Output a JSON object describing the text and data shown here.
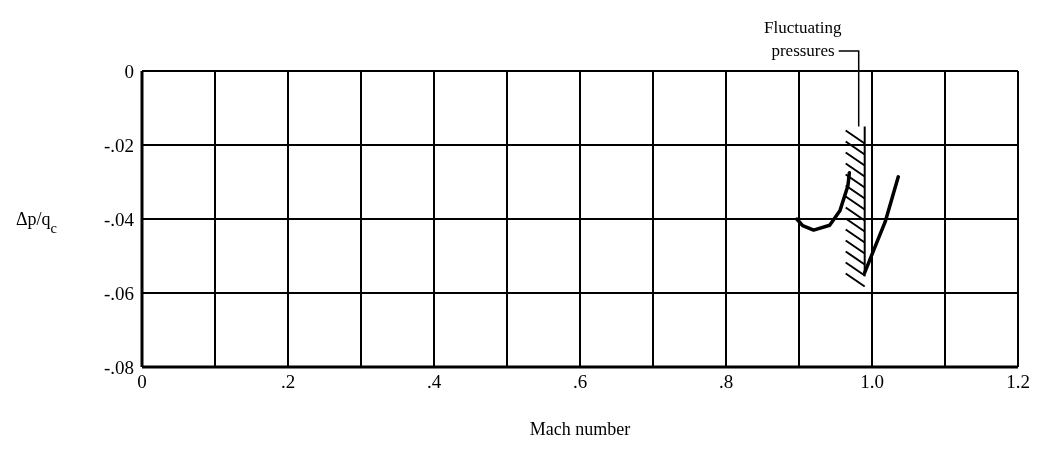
{
  "chart_data": {
    "type": "line",
    "xlabel": "Mach number",
    "ylabel": "Δp/q$_{c}$",
    "series": [
      {
        "color": "#000000",
        "x": [
          0.897,
          0.905,
          0.92,
          0.942,
          0.956,
          0.967,
          0.969
        ],
        "values": [
          -0.04,
          -0.0418,
          -0.043,
          -0.0417,
          -0.0378,
          -0.031,
          -0.0275
        ]
      },
      {
        "color": "#000000",
        "x": [
          0.99,
          1.004,
          1.018,
          1.036
        ],
        "values": [
          -0.0545,
          -0.0476,
          -0.0408,
          -0.0286
        ]
      }
    ],
    "annotations": [
      "Fluctuating pressures"
    ],
    "xlim": [
      0,
      1.2
    ],
    "xticks": [
      0,
      {
        "value": 0.1,
        "label": null
      },
      {
        "value": 0.2,
        "label": ".2"
      },
      {
        "value": 0.3,
        "label": null
      },
      {
        "value": 0.4,
        "label": ".4"
      },
      {
        "value": 0.5,
        "label": null
      },
      {
        "value": 0.6,
        "label": ".6"
      },
      {
        "value": 0.7,
        "label": null
      },
      {
        "value": 0.8,
        "label": ".8"
      },
      {
        "value": 0.9,
        "label": null
      },
      {
        "value": 1.0,
        "label": "1.0"
      },
      {
        "value": 1.1,
        "label": null
      },
      {
        "value": 1.2,
        "label": "1.2"
      }
    ],
    "ylim": [
      -0.08,
      0
    ],
    "yticks": [
      {
        "value": -0.08,
        "label": "-.08"
      },
      {
        "value": -0.06,
        "label": "-.06"
      },
      {
        "value": -0.04,
        "label": "-.04"
      },
      {
        "value": -0.02,
        "label": "-.02"
      },
      0
    ],
    "grid": true,
    "marker": "none",
    "line_style": "solid",
    "legend": false
  }
}
